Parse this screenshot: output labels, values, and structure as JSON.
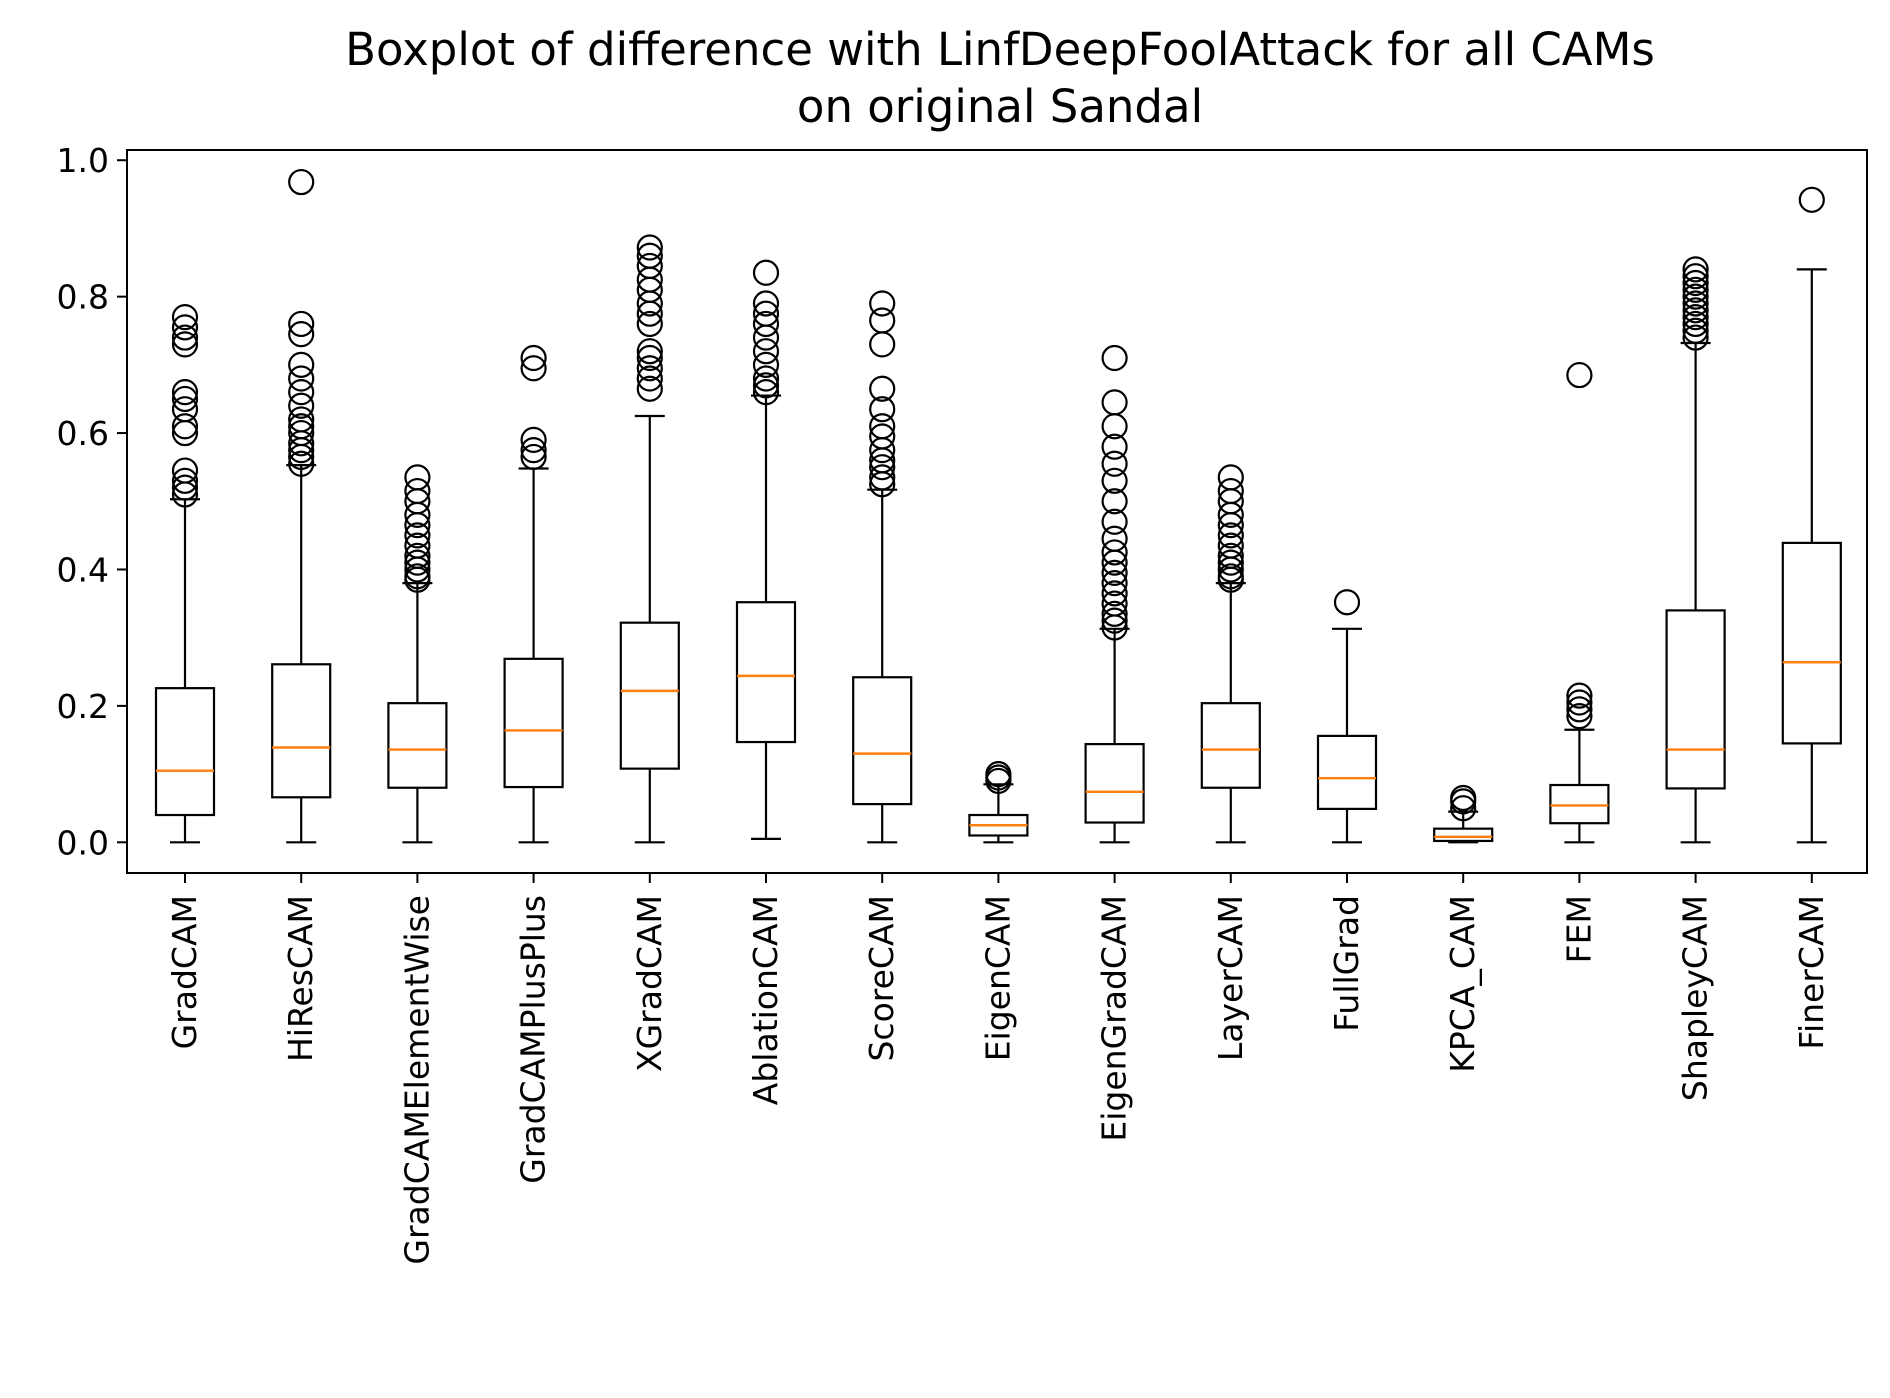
{
  "chart_data": {
    "type": "boxplot",
    "title": "Boxplot of difference with LinfDeepFoolAttack for all CAMs",
    "subtitle": "on original Sandal",
    "xlabel": "",
    "ylabel": "",
    "ylim": [
      -0.045,
      1.015
    ],
    "y_ticks": [
      0.0,
      0.2,
      0.4,
      0.6,
      0.8,
      1.0
    ],
    "y_tick_labels": [
      "0.0",
      "0.2",
      "0.4",
      "0.6",
      "0.8",
      "1.0"
    ],
    "grid": false,
    "legend": "none",
    "colors": {
      "box": "#000000",
      "median": "#ff7f0e",
      "flier": "#000000"
    },
    "categories": [
      "GradCAM",
      "HiResCAM",
      "GradCAMElementWise",
      "GradCAMPlusPlus",
      "XGradCAM",
      "AblationCAM",
      "ScoreCAM",
      "EigenCAM",
      "EigenGradCAM",
      "LayerCAM",
      "FullGrad",
      "KPCA_CAM",
      "FEM",
      "ShapleyCAM",
      "FinerCAM"
    ],
    "boxes": [
      {
        "whisker_low": 0.0,
        "q1": 0.04,
        "median": 0.105,
        "q3": 0.226,
        "whisker_high": 0.503,
        "outliers": [
          0.51,
          0.52,
          0.53,
          0.545,
          0.6,
          0.61,
          0.635,
          0.65,
          0.66,
          0.73,
          0.74,
          0.755,
          0.77
        ]
      },
      {
        "whisker_low": 0.0,
        "q1": 0.066,
        "median": 0.139,
        "q3": 0.261,
        "whisker_high": 0.553,
        "outliers": [
          0.555,
          0.565,
          0.575,
          0.585,
          0.6,
          0.61,
          0.62,
          0.64,
          0.66,
          0.68,
          0.7,
          0.745,
          0.76,
          0.968
        ]
      },
      {
        "whisker_low": 0.0,
        "q1": 0.08,
        "median": 0.136,
        "q3": 0.204,
        "whisker_high": 0.38,
        "outliers": [
          0.385,
          0.39,
          0.4,
          0.41,
          0.42,
          0.435,
          0.45,
          0.465,
          0.48,
          0.5,
          0.515,
          0.535
        ]
      },
      {
        "whisker_low": 0.0,
        "q1": 0.081,
        "median": 0.164,
        "q3": 0.269,
        "whisker_high": 0.548,
        "outliers": [
          0.565,
          0.575,
          0.59,
          0.695,
          0.71
        ]
      },
      {
        "whisker_low": 0.0,
        "q1": 0.108,
        "median": 0.222,
        "q3": 0.322,
        "whisker_high": 0.625,
        "outliers": [
          0.665,
          0.68,
          0.695,
          0.71,
          0.72,
          0.76,
          0.775,
          0.79,
          0.81,
          0.825,
          0.845,
          0.86,
          0.872
        ]
      },
      {
        "whisker_low": 0.005,
        "q1": 0.147,
        "median": 0.244,
        "q3": 0.352,
        "whisker_high": 0.655,
        "outliers": [
          0.66,
          0.67,
          0.68,
          0.7,
          0.72,
          0.74,
          0.76,
          0.775,
          0.79,
          0.835
        ]
      },
      {
        "whisker_low": 0.0,
        "q1": 0.056,
        "median": 0.13,
        "q3": 0.242,
        "whisker_high": 0.517,
        "outliers": [
          0.525,
          0.535,
          0.55,
          0.56,
          0.575,
          0.595,
          0.61,
          0.635,
          0.665,
          0.73,
          0.765,
          0.79
        ]
      },
      {
        "whisker_low": 0.0,
        "q1": 0.01,
        "median": 0.025,
        "q3": 0.04,
        "whisker_high": 0.085,
        "outliers": [
          0.09,
          0.095,
          0.1
        ]
      },
      {
        "whisker_low": 0.0,
        "q1": 0.029,
        "median": 0.074,
        "q3": 0.144,
        "whisker_high": 0.313,
        "outliers": [
          0.315,
          0.325,
          0.335,
          0.35,
          0.365,
          0.38,
          0.395,
          0.41,
          0.425,
          0.445,
          0.47,
          0.5,
          0.53,
          0.555,
          0.58,
          0.61,
          0.645,
          0.71
        ]
      },
      {
        "whisker_low": 0.0,
        "q1": 0.08,
        "median": 0.136,
        "q3": 0.204,
        "whisker_high": 0.38,
        "outliers": [
          0.385,
          0.39,
          0.4,
          0.41,
          0.42,
          0.435,
          0.45,
          0.465,
          0.48,
          0.5,
          0.515,
          0.535
        ]
      },
      {
        "whisker_low": 0.0,
        "q1": 0.049,
        "median": 0.094,
        "q3": 0.156,
        "whisker_high": 0.313,
        "outliers": [
          0.352
        ]
      },
      {
        "whisker_low": 0.0,
        "q1": 0.002,
        "median": 0.008,
        "q3": 0.02,
        "whisker_high": 0.045,
        "outliers": [
          0.05,
          0.06,
          0.065
        ]
      },
      {
        "whisker_low": 0.0,
        "q1": 0.028,
        "median": 0.054,
        "q3": 0.084,
        "whisker_high": 0.165,
        "outliers": [
          0.185,
          0.195,
          0.205,
          0.215,
          0.685
        ]
      },
      {
        "whisker_low": 0.0,
        "q1": 0.079,
        "median": 0.136,
        "q3": 0.34,
        "whisker_high": 0.732,
        "outliers": [
          0.74,
          0.75,
          0.76,
          0.77,
          0.78,
          0.79,
          0.8,
          0.81,
          0.82,
          0.83,
          0.84
        ]
      },
      {
        "whisker_low": 0.0,
        "q1": 0.145,
        "median": 0.264,
        "q3": 0.439,
        "whisker_high": 0.84,
        "outliers": [
          0.942
        ]
      }
    ]
  }
}
